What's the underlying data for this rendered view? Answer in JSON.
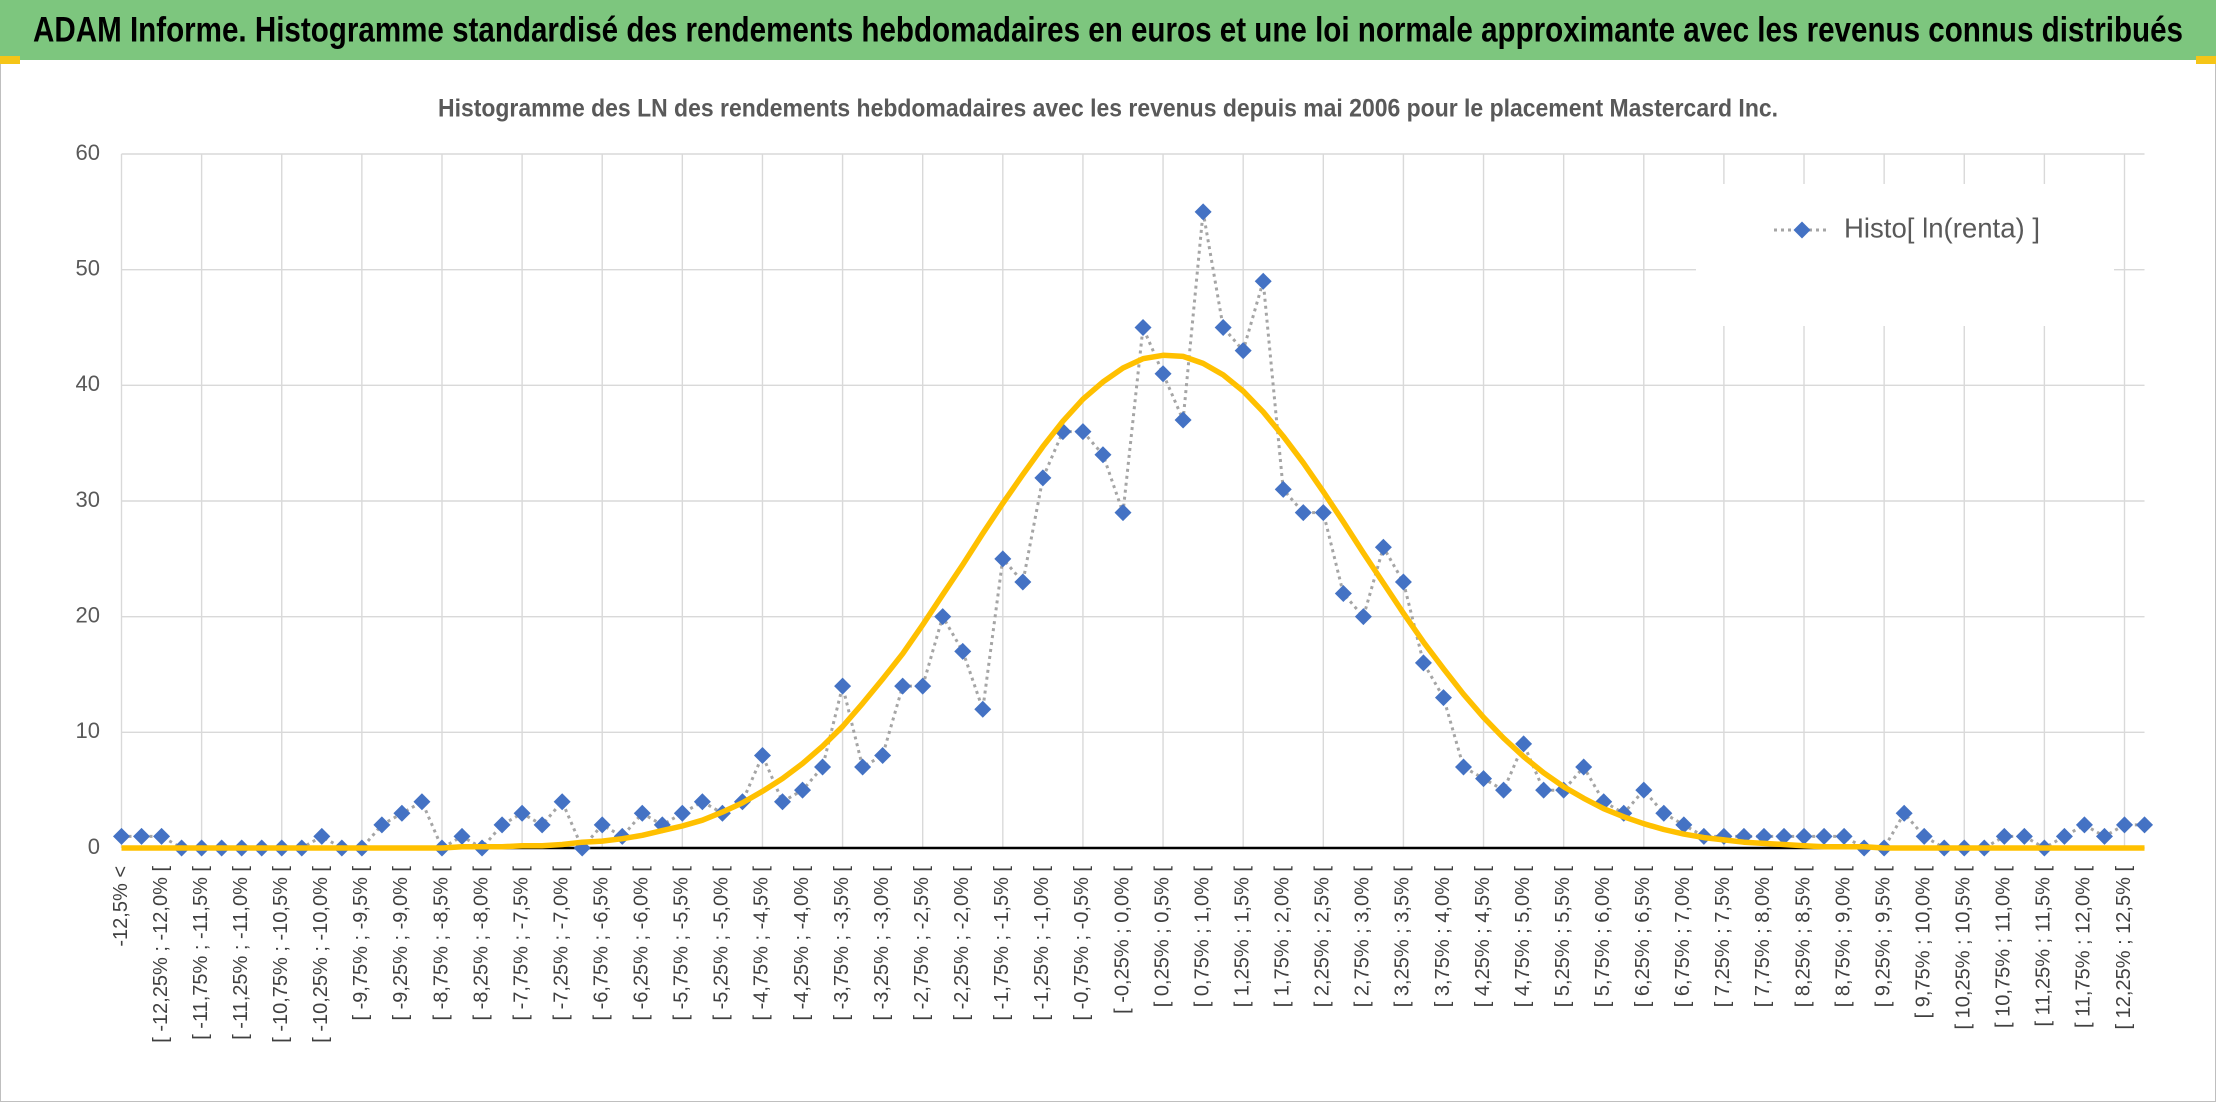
{
  "header": {
    "title": "ADAM Informe. Histogramme standardisé des rendements hebdomadaires en euros et une loi normale approximante avec les revenus connus distribués"
  },
  "chart_data": {
    "type": "line",
    "title": "Histogramme des LN des rendements hebdomadaires avec les revenus depuis mai 2006 pour le placement Mastercard Inc.",
    "categories": [
      "-12,5% <",
      null,
      "[ -12,25% ; -12,0% [",
      null,
      "[ -11,75% ; -11,5% [",
      null,
      "[ -11,25% ; -11,0% [",
      null,
      "[ -10,75% ; -10,5% [",
      null,
      "[ -10,25% ; -10,0% [",
      null,
      "[ -9,75% ; -9,5% [",
      null,
      "[ -9,25% ; -9,0% [",
      null,
      "[ -8,75% ; -8,5% [",
      null,
      "[ -8,25% ; -8,0% [",
      null,
      "[ -7,75% ; -7,5% [",
      null,
      "[ -7,25% ; -7,0% [",
      null,
      "[ -6,75% ; -6,5% [",
      null,
      "[ -6,25% ; -6,0% [",
      null,
      "[ -5,75% ; -5,5% [",
      null,
      "[ -5,25% ; -5,0% [",
      null,
      "[ -4,75% ; -4,5% [",
      null,
      "[ -4,25% ; -4,0% [",
      null,
      "[ -3,75% ; -3,5% [",
      null,
      "[ -3,25% ; -3,0% [",
      null,
      "[ -2,75% ; -2,5% [",
      null,
      "[ -2,25% ; -2,0% [",
      null,
      "[ -1,75% ; -1,5% [",
      null,
      "[ -1,25% ; -1,0% [",
      null,
      "[ -0,75% ; -0,5% [",
      null,
      "[ -0,25% ; 0,0% [",
      null,
      "[ 0,25% ; 0,5% [",
      null,
      "[ 0,75% ; 1,0% [",
      null,
      "[ 1,25% ; 1,5% [",
      null,
      "[ 1,75% ; 2,0% [",
      null,
      "[ 2,25% ; 2,5% [",
      null,
      "[ 2,75% ; 3,0% [",
      null,
      "[ 3,25% ; 3,5% [",
      null,
      "[ 3,75% ; 4,0% [",
      null,
      "[ 4,25% ; 4,5% [",
      null,
      "[ 4,75% ; 5,0% [",
      null,
      "[ 5,25% ; 5,5% [",
      null,
      "[ 5,75% ; 6,0% [",
      null,
      "[ 6,25% ; 6,5% [",
      null,
      "[ 6,75% ; 7,0% [",
      null,
      "[ 7,25% ; 7,5% [",
      null,
      "[ 7,75% ; 8,0% [",
      null,
      "[ 8,25% ; 8,5% [",
      null,
      "[ 8,75% ; 9,0% [",
      null,
      "[ 9,25% ; 9,5% [",
      null,
      "[ 9,75% ; 10,0% [",
      null,
      "[ 10,25% ; 10,5% [",
      null,
      "[ 10,75% ; 11,0% [",
      null,
      "[ 11,25% ; 11,5% [",
      null,
      "[ 11,75% ; 12,0% [",
      null,
      "[ 12,25% ; 12,5% [",
      null
    ],
    "series": [
      {
        "name": "Histo[ ln(renta) ]",
        "color": "#4472c4",
        "line_color": "#a5a5a5",
        "line_style": "dotted",
        "marker": "diamond",
        "values": [
          1,
          1,
          1,
          0,
          0,
          0,
          0,
          0,
          0,
          0,
          1,
          0,
          0,
          2,
          3,
          4,
          0,
          1,
          0,
          2,
          3,
          2,
          4,
          0,
          2,
          1,
          3,
          2,
          3,
          4,
          3,
          4,
          8,
          4,
          5,
          7,
          14,
          7,
          8,
          14,
          14,
          20,
          17,
          12,
          25,
          23,
          32,
          36,
          36,
          34,
          29,
          45,
          41,
          37,
          55,
          45,
          43,
          49,
          31,
          29,
          29,
          22,
          20,
          26,
          23,
          16,
          13,
          7,
          6,
          5,
          9,
          5,
          5,
          7,
          4,
          3,
          5,
          3,
          2,
          1,
          1,
          1,
          1,
          1,
          1,
          1,
          1,
          0,
          0,
          3,
          1,
          0,
          0,
          0,
          1,
          1,
          0,
          1,
          2,
          1,
          2,
          2
        ]
      },
      {
        "color": "#ffc000",
        "line_style": "solid",
        "marker": "none",
        "values": [
          0,
          0,
          0,
          0,
          0,
          0,
          0,
          0,
          0,
          0,
          0,
          0,
          0,
          0,
          0,
          0,
          0,
          0.1,
          0.1,
          0.1,
          0.2,
          0.2,
          0.3,
          0.5,
          0.6,
          0.8,
          1.1,
          1.5,
          1.9,
          2.4,
          3.1,
          3.9,
          4.9,
          6.0,
          7.3,
          8.8,
          10.5,
          12.5,
          14.6,
          16.8,
          19.3,
          21.9,
          24.5,
          27.2,
          29.8,
          32.3,
          34.7,
          36.9,
          38.8,
          40.3,
          41.5,
          42.3,
          42.6,
          42.5,
          41.9,
          40.9,
          39.5,
          37.7,
          35.6,
          33.3,
          30.8,
          28.2,
          25.5,
          22.9,
          20.3,
          17.8,
          15.5,
          13.3,
          11.3,
          9.5,
          7.9,
          6.5,
          5.3,
          4.3,
          3.4,
          2.7,
          2.1,
          1.6,
          1.2,
          0.9,
          0.7,
          0.5,
          0.4,
          0.3,
          0.2,
          0.1,
          0.1,
          0.1,
          0,
          0,
          0,
          0,
          0,
          0,
          0,
          0,
          0,
          0,
          0,
          0,
          0,
          0
        ]
      }
    ],
    "ylim": [
      0,
      60
    ],
    "yticks": [
      0,
      10,
      20,
      30,
      40,
      50,
      60
    ],
    "grid": true,
    "legend": "top-right"
  }
}
